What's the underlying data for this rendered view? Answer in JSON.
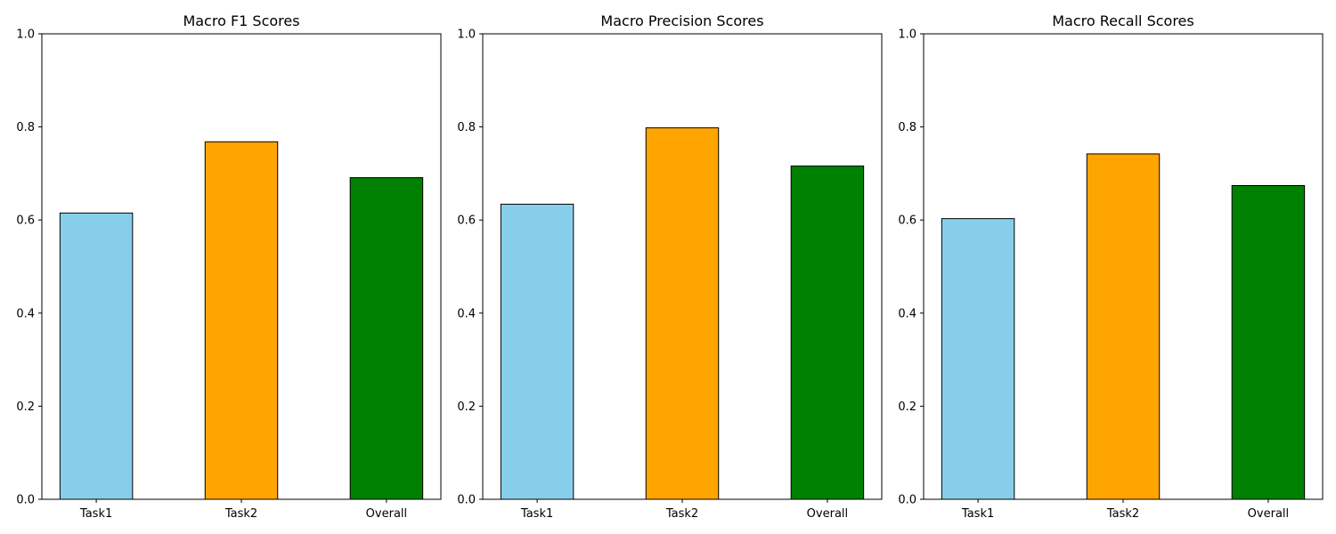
{
  "chart_data": [
    {
      "type": "bar",
      "title": "Macro F1 Scores",
      "categories": [
        "Task1",
        "Task2",
        "Overall"
      ],
      "values": [
        0.615,
        0.768,
        0.691
      ],
      "ylim": [
        0,
        1
      ],
      "yticks": [
        "0.0",
        "0.2",
        "0.4",
        "0.6",
        "0.8",
        "1.0"
      ],
      "colors": [
        "#87ceeb",
        "#ffa500",
        "#008000"
      ],
      "edge_color": "#000000",
      "grid": false
    },
    {
      "type": "bar",
      "title": "Macro Precision Scores",
      "categories": [
        "Task1",
        "Task2",
        "Overall"
      ],
      "values": [
        0.634,
        0.798,
        0.716
      ],
      "ylim": [
        0,
        1
      ],
      "yticks": [
        "0.0",
        "0.2",
        "0.4",
        "0.6",
        "0.8",
        "1.0"
      ],
      "colors": [
        "#87ceeb",
        "#ffa500",
        "#008000"
      ],
      "edge_color": "#000000",
      "grid": false
    },
    {
      "type": "bar",
      "title": "Macro Recall Scores",
      "categories": [
        "Task1",
        "Task2",
        "Overall"
      ],
      "values": [
        0.603,
        0.742,
        0.674
      ],
      "ylim": [
        0,
        1
      ],
      "yticks": [
        "0.0",
        "0.2",
        "0.4",
        "0.6",
        "0.8",
        "1.0"
      ],
      "colors": [
        "#87ceeb",
        "#ffa500",
        "#008000"
      ],
      "edge_color": "#000000",
      "grid": false
    }
  ]
}
